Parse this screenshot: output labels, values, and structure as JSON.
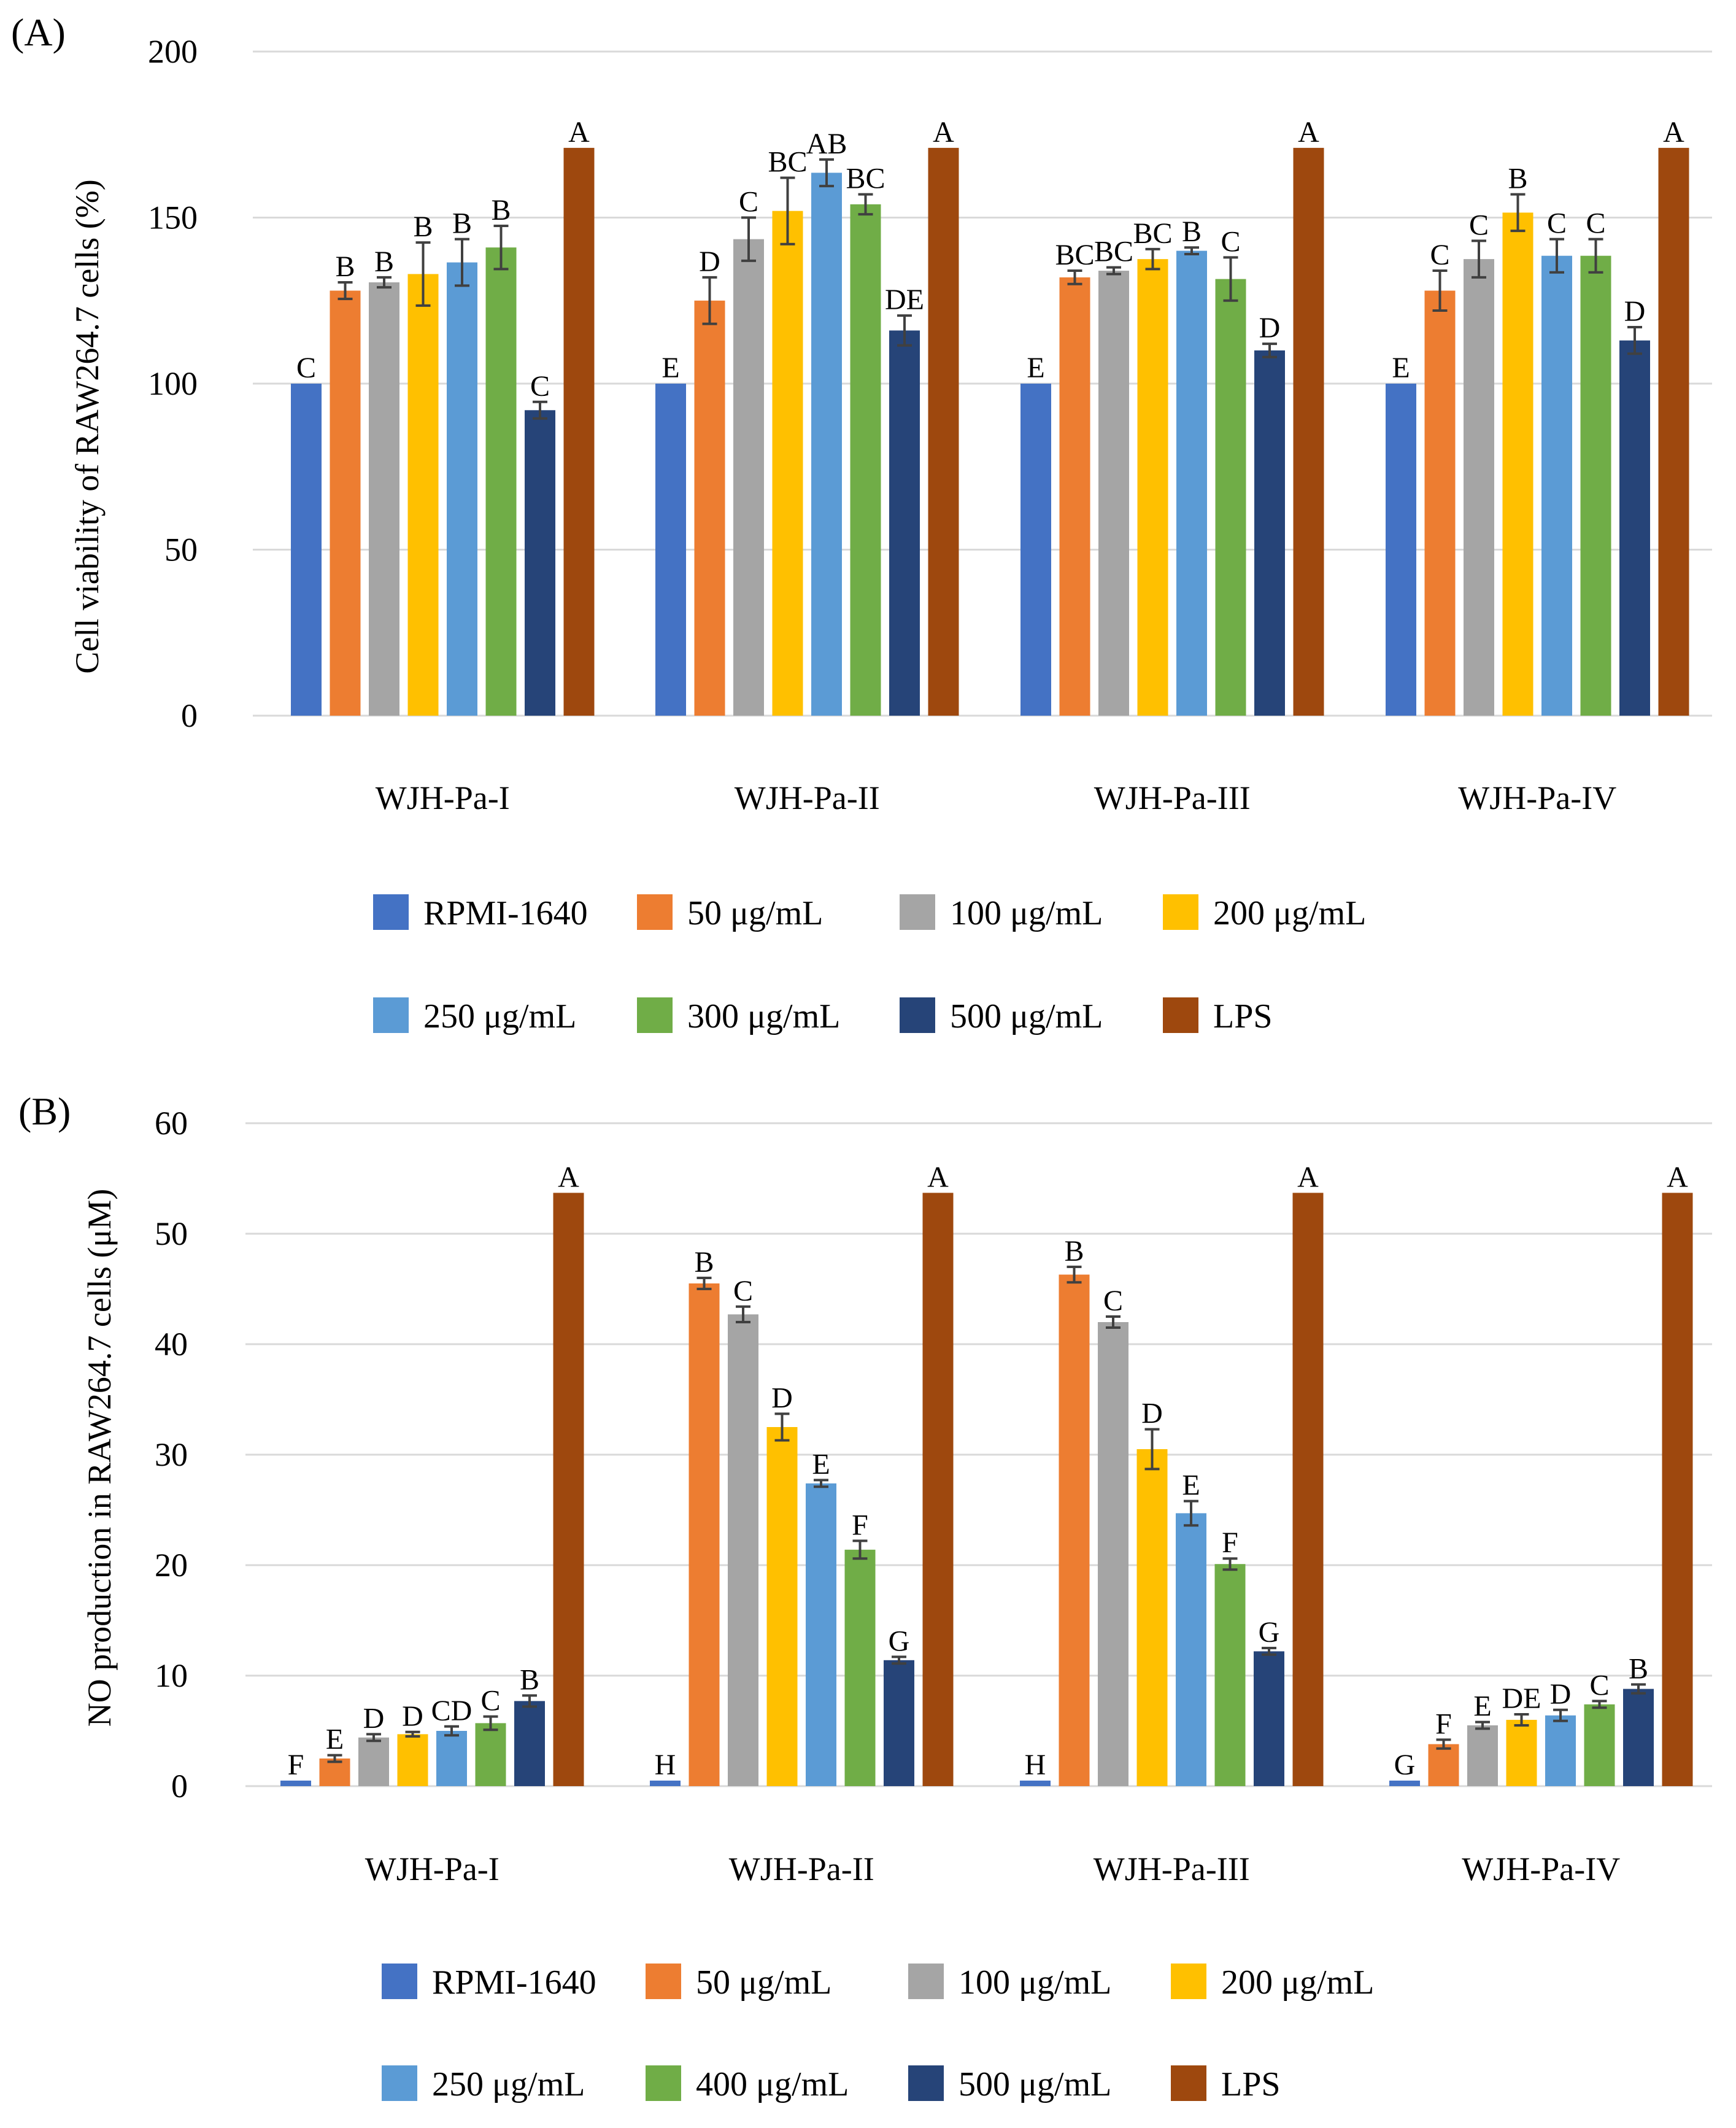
{
  "chart_data": [
    {
      "panel_label": "(A)",
      "type": "bar",
      "ylabel": "Cell viability of  RAW264.7 cells (%)",
      "xlabel": "",
      "ylim": [
        0,
        200
      ],
      "ytick_values": [
        0,
        50,
        100,
        150,
        200
      ],
      "ytick_labels": [
        "0",
        "50",
        "100",
        "150",
        "200"
      ],
      "grid": true,
      "legend_position": "bottom",
      "categories": [
        "WJH-Pa-I",
        "WJH-Pa-II",
        "WJH-Pa-III",
        "WJH-Pa-IV"
      ],
      "series": [
        {
          "name": "RPMI-1640",
          "color": "#4472C4",
          "values": [
            100,
            100,
            100,
            100
          ],
          "errors": [
            0,
            0,
            0,
            0
          ],
          "letters": [
            "C",
            "E",
            "E",
            "E"
          ]
        },
        {
          "name": "50 μg/mL",
          "color": "#ED7D31",
          "values": [
            128,
            125,
            132,
            128
          ],
          "errors": [
            2.5,
            7,
            2,
            6
          ],
          "letters": [
            "B",
            "D",
            "BC",
            "C"
          ]
        },
        {
          "name": "100 μg/mL",
          "color": "#A5A5A5",
          "values": [
            130.5,
            143.5,
            134,
            137.5
          ],
          "errors": [
            1.5,
            6.5,
            1,
            5.5
          ],
          "letters": [
            "B",
            "C",
            "BC",
            "C"
          ]
        },
        {
          "name": "200 μg/mL",
          "color": "#FFC000",
          "values": [
            133,
            152,
            137.5,
            151.5
          ],
          "errors": [
            9.5,
            10,
            3,
            5.5
          ],
          "letters": [
            "B",
            "BC",
            "BC",
            "B"
          ]
        },
        {
          "name": "250 μg/mL",
          "color": "#5B9BD5",
          "values": [
            136.5,
            163.5,
            140,
            138.5
          ],
          "errors": [
            7,
            4,
            1,
            5
          ],
          "letters": [
            "B",
            "AB",
            "B",
            "C"
          ]
        },
        {
          "name": "300 μg/mL",
          "color": "#70AD47",
          "values": [
            141,
            154,
            131.5,
            138.5
          ],
          "errors": [
            6.5,
            3,
            6.5,
            5
          ],
          "letters": [
            "B",
            "BC",
            "C",
            "C"
          ]
        },
        {
          "name": "500 μg/mL",
          "color": "#264478",
          "values": [
            92,
            116,
            110,
            113
          ],
          "errors": [
            2.5,
            4.5,
            2,
            4
          ],
          "letters": [
            "C",
            "DE",
            "D",
            "D"
          ]
        },
        {
          "name": "LPS",
          "color": "#9E480E",
          "values": [
            171,
            171,
            171,
            171
          ],
          "errors": [
            0,
            0,
            0,
            0
          ],
          "letters": [
            "A",
            "A",
            "A",
            "A"
          ]
        }
      ]
    },
    {
      "panel_label": "(B)",
      "type": "bar",
      "ylabel": "NO production  in RAW264.7 cells (μM)",
      "xlabel": "",
      "ylim": [
        0,
        60
      ],
      "ytick_values": [
        0,
        10,
        20,
        30,
        40,
        50,
        60
      ],
      "ytick_labels": [
        "0",
        "10",
        "20",
        "30",
        "40",
        "50",
        "60"
      ],
      "grid": true,
      "legend_position": "bottom",
      "categories": [
        "WJH-Pa-I",
        "WJH-Pa-II",
        "WJH-Pa-III",
        "WJH-Pa-IV"
      ],
      "series": [
        {
          "name": "RPMI-1640",
          "color": "#4472C4",
          "values": [
            0.5,
            0.5,
            0.5,
            0.5
          ],
          "errors": [
            0,
            0,
            0,
            0
          ],
          "letters": [
            "F",
            "H",
            "H",
            "G"
          ]
        },
        {
          "name": "50 μg/mL",
          "color": "#ED7D31",
          "values": [
            2.5,
            45.5,
            46.3,
            3.8
          ],
          "errors": [
            0.3,
            0.5,
            0.7,
            0.4
          ],
          "letters": [
            "E",
            "B",
            "B",
            "F"
          ]
        },
        {
          "name": "100 μg/mL",
          "color": "#A5A5A5",
          "values": [
            4.4,
            42.7,
            42.0,
            5.5
          ],
          "errors": [
            0.3,
            0.7,
            0.5,
            0.3
          ],
          "letters": [
            "D",
            "C",
            "C",
            "E"
          ]
        },
        {
          "name": "200 μg/mL",
          "color": "#FFC000",
          "values": [
            4.7,
            32.5,
            30.5,
            6.0
          ],
          "errors": [
            0.2,
            1.2,
            1.8,
            0.5
          ],
          "letters": [
            "D",
            "D",
            "D",
            "DE"
          ]
        },
        {
          "name": "250 μg/mL",
          "color": "#5B9BD5",
          "values": [
            5.0,
            27.4,
            24.7,
            6.4
          ],
          "errors": [
            0.4,
            0.3,
            1.1,
            0.5
          ],
          "letters": [
            "CD",
            "E",
            "E",
            "D"
          ]
        },
        {
          "name": "400 μg/mL",
          "color": "#70AD47",
          "values": [
            5.7,
            21.4,
            20.1,
            7.4
          ],
          "errors": [
            0.6,
            0.8,
            0.5,
            0.3
          ],
          "letters": [
            "C",
            "F",
            "F",
            "C"
          ]
        },
        {
          "name": "500 μg/mL",
          "color": "#264478",
          "values": [
            7.7,
            11.4,
            12.2,
            8.8
          ],
          "errors": [
            0.5,
            0.3,
            0.3,
            0.4
          ],
          "letters": [
            "B",
            "G",
            "G",
            "B"
          ]
        },
        {
          "name": "LPS",
          "color": "#9E480E",
          "values": [
            53.7,
            53.7,
            53.7,
            53.7
          ],
          "errors": [
            0,
            0,
            0,
            0
          ],
          "letters": [
            "A",
            "A",
            "A",
            "A"
          ]
        }
      ]
    }
  ]
}
